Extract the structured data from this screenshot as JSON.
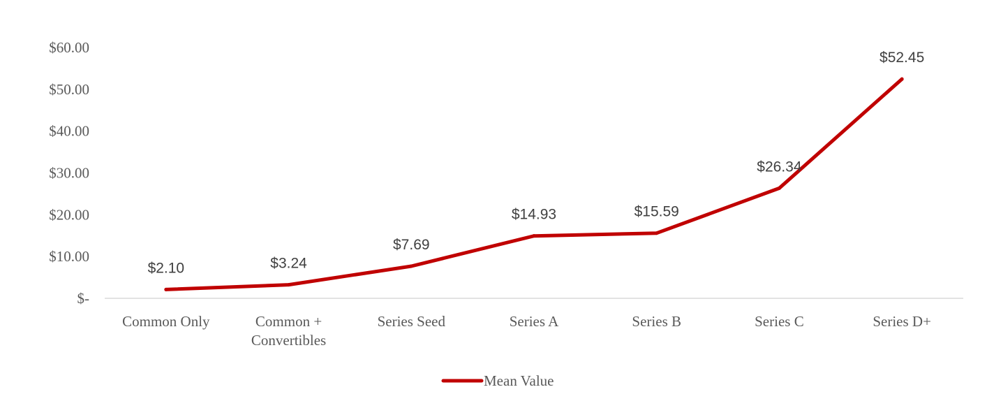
{
  "chart_data": {
    "type": "line",
    "categories": [
      [
        "Common Only"
      ],
      [
        "Common +",
        "Convertibles"
      ],
      [
        "Series Seed"
      ],
      [
        "Series A"
      ],
      [
        "Series B"
      ],
      [
        "Series C"
      ],
      [
        "Series D+"
      ]
    ],
    "series": [
      {
        "name": "Mean Value",
        "values": [
          2.1,
          3.24,
          7.69,
          14.93,
          15.59,
          26.34,
          52.45
        ],
        "labels": [
          "$2.10",
          "$3.24",
          "$7.69",
          "$14.93",
          "$15.59",
          "$26.34",
          "$52.45"
        ],
        "color": "#C00000"
      }
    ],
    "y_ticks": [
      0,
      10,
      20,
      30,
      40,
      50,
      60
    ],
    "y_tick_labels": [
      "$-",
      "$10.00",
      "$20.00",
      "$30.00",
      "$40.00",
      "$50.00",
      "$60.00"
    ],
    "ylim": [
      0,
      60
    ],
    "title": "",
    "xlabel": "",
    "ylabel": "",
    "grid": false,
    "legend_position": "bottom",
    "colors": {
      "axis": "#D9D9D9",
      "tick_text": "#595959",
      "label_text": "#404040"
    }
  }
}
